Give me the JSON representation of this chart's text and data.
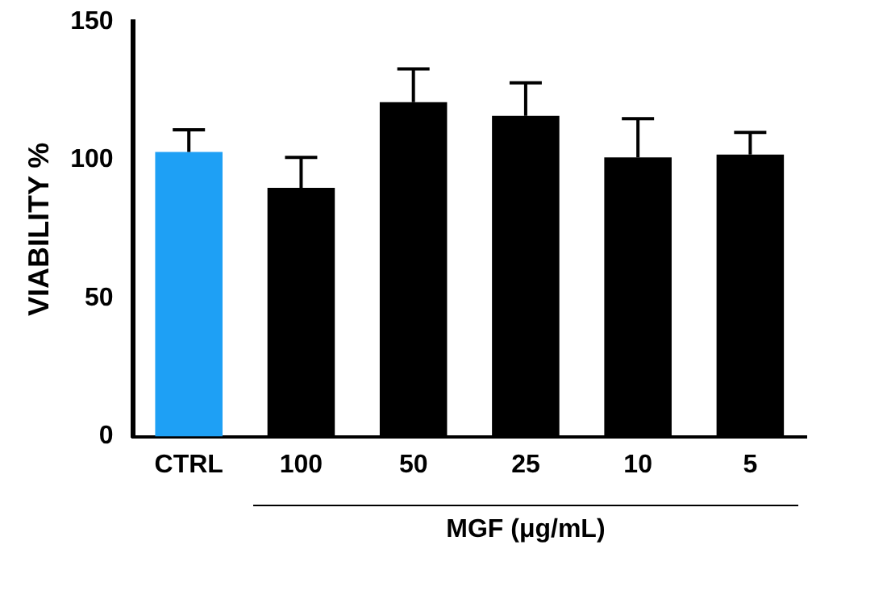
{
  "chart_data": {
    "type": "bar",
    "ylabel": "VIABILITY %",
    "categories": [
      "CTRL",
      "100",
      "50",
      "25",
      "10",
      "5"
    ],
    "values": [
      103,
      90,
      121,
      116,
      101,
      102
    ],
    "errors": [
      [
        103,
        111
      ],
      [
        90,
        101
      ],
      [
        121,
        133
      ],
      [
        116,
        128
      ],
      [
        101,
        115
      ],
      [
        102,
        110
      ]
    ],
    "colors": [
      "#1ea0f5",
      "#000000",
      "#000000",
      "#000000",
      "#000000",
      "#000000"
    ],
    "ylim": [
      0,
      150
    ],
    "yticks": [
      0,
      50,
      100,
      150
    ],
    "grid": false,
    "legend": false,
    "annotations": [
      "MGF (μg/mL)"
    ]
  }
}
